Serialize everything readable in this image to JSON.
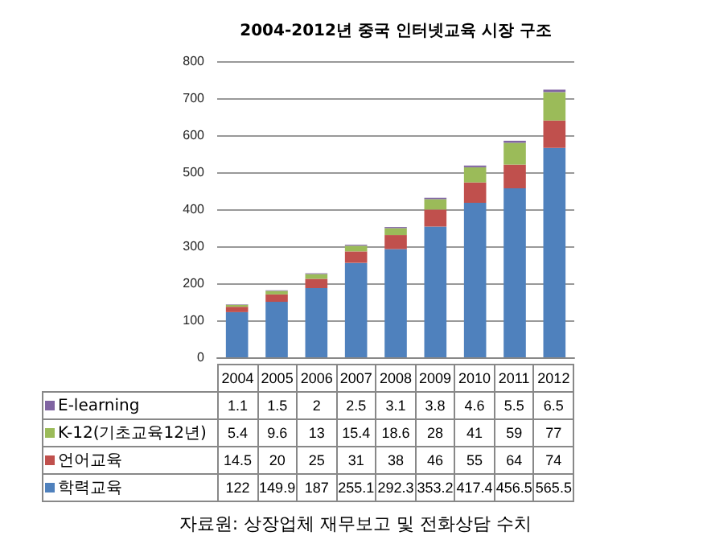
{
  "chart_data": {
    "type": "bar",
    "title": "2004-2012년 중국 인터넷교육 시장 구조",
    "categories": [
      "2004",
      "2005",
      "2006",
      "2007",
      "2008",
      "2009",
      "2010",
      "2011",
      "2012"
    ],
    "stacked": true,
    "series": [
      {
        "name": "학력교육",
        "color": "#4f81bd",
        "values": [
          122,
          149.9,
          187,
          255.1,
          292.3,
          353.2,
          417.4,
          456.5,
          565.5
        ]
      },
      {
        "name": "언어교육",
        "color": "#c0504d",
        "values": [
          14.5,
          20,
          25,
          31,
          38,
          46,
          55,
          64,
          74
        ]
      },
      {
        "name": "K-12(기초교육12년)",
        "color": "#9bbb59",
        "values": [
          5.4,
          9.6,
          13,
          15.4,
          18.6,
          28,
          41,
          59,
          77
        ]
      },
      {
        "name": "E-learning",
        "color": "#8064a2",
        "values": [
          1.1,
          1.5,
          2,
          2.5,
          3.1,
          3.8,
          4.6,
          5.5,
          6.5
        ]
      }
    ],
    "ylim": [
      0,
      800
    ],
    "yticks": [
      0,
      100,
      200,
      300,
      400,
      500,
      600,
      700,
      800
    ],
    "grid": "y",
    "legend": "bottom",
    "data_labels": true,
    "annotations": [
      "자료원: 상장업체 재무보고 및 전화상담 수치"
    ]
  }
}
